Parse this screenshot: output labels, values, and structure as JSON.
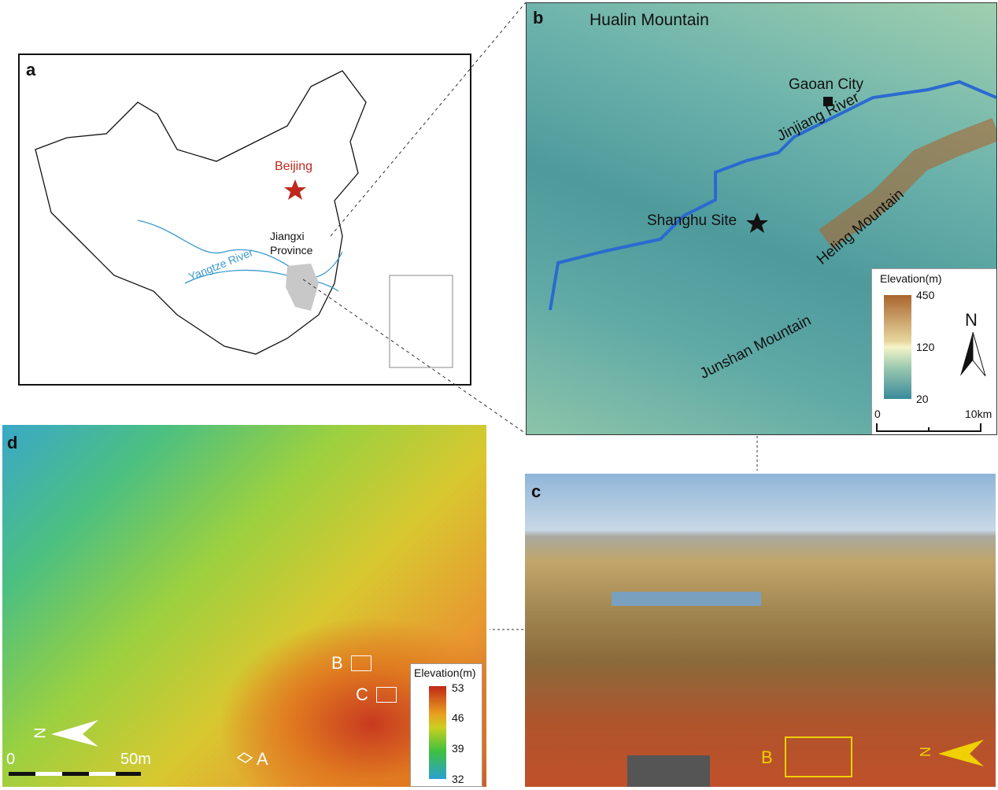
{
  "panel_a": {
    "letter": "a",
    "beijing": "Beijing",
    "province_line1": "Jiangxi",
    "province_line2": "Province",
    "river": "Yangtze River",
    "colors": {
      "border": "#111111",
      "river": "#3a9ad0",
      "capital": "#c0281e",
      "province": "#c8c8c8"
    }
  },
  "panel_b": {
    "letter": "b",
    "hualin": "Hualin Mountain",
    "gaoan": "Gaoan City",
    "jinjiang": "Jinjiang River",
    "shanghu": "Shanghu Site",
    "heling": "Heling Mountain",
    "junshan": "Junshan Mountain",
    "legend": {
      "title": "Elevation(m)",
      "max": "450",
      "mid": "120",
      "min": "20"
    },
    "north": "N",
    "scale": {
      "start": "0",
      "end": "10km"
    }
  },
  "panel_c": {
    "letter": "c",
    "box_label": "B",
    "north": "N",
    "colors": {
      "box": "#f0d000"
    }
  },
  "panel_d": {
    "letter": "d",
    "legend": {
      "title": "Elevation(m)",
      "t1": "53",
      "t2": "46",
      "t3": "39",
      "t4": "32"
    },
    "label_a": "A",
    "label_b": "B",
    "label_c": "C",
    "north": "N",
    "scale": {
      "start": "0",
      "end": "50m"
    }
  }
}
